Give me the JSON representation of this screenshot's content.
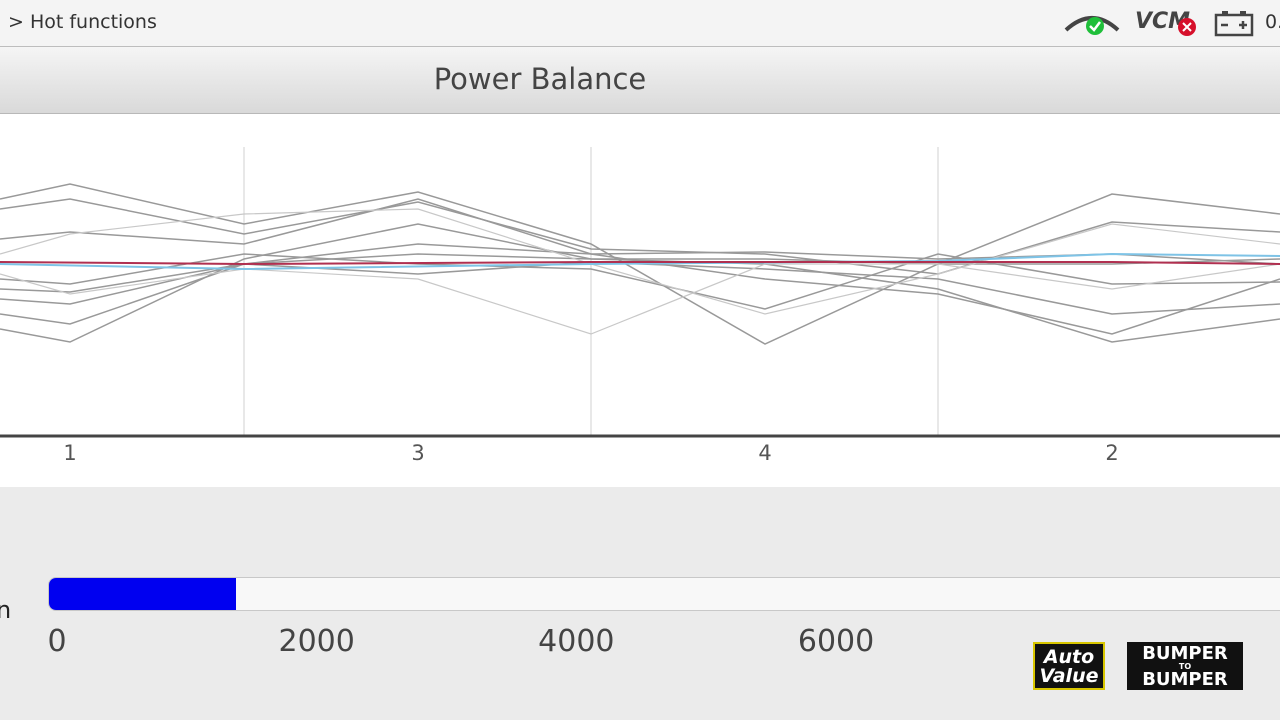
{
  "breadcrumb": "> Hot functions",
  "status": {
    "vcm": "VCM",
    "voltage": "0."
  },
  "title": "Power Balance",
  "cylinders": [
    "1",
    "3",
    "4",
    "2"
  ],
  "gauge": {
    "unit": "n",
    "min": 0,
    "max": 6000,
    "value": 960,
    "ticks": [
      0,
      2000,
      4000,
      6000
    ]
  },
  "logos": {
    "auto_value": [
      "Auto",
      "Value"
    ],
    "bumper": [
      "BUMPER",
      "TO",
      "BUMPER"
    ]
  }
}
